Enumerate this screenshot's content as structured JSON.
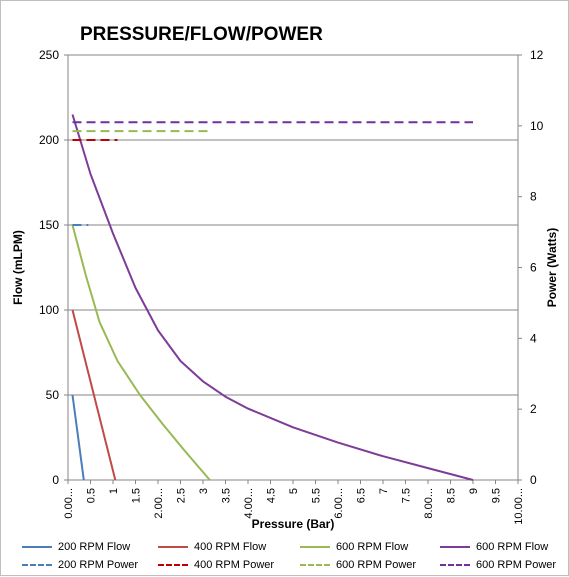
{
  "chart_data": {
    "type": "line",
    "title": "PRESSURE/FLOW/POWER",
    "xlabel": "Pressure (Bar)",
    "ylabel": "Flow (mLPM)",
    "y2label": "Power (Watts)",
    "x_ticks": [
      "0.00...",
      "0.5",
      "1",
      "1.5",
      "2.00...",
      "2.5",
      "3",
      "3.5",
      "4.00...",
      "4.5",
      "5",
      "5.5",
      "6.00...",
      "6.5",
      "7",
      "7.5",
      "8.00...",
      "8.5",
      "9",
      "9.5",
      "10.00..."
    ],
    "xlim": [
      0,
      10
    ],
    "ylim": [
      0,
      250
    ],
    "y_ticks": [
      0,
      50,
      100,
      150,
      200,
      250
    ],
    "y2lim": [
      0,
      12
    ],
    "y2_ticks": [
      0,
      2,
      4,
      6,
      8,
      10,
      12
    ],
    "grid": "horizontal",
    "legend_position": "bottom",
    "series": [
      {
        "name": "200 RPM Flow",
        "axis": "left",
        "style": "solid",
        "color": "#4a7ebb",
        "points": [
          [
            0.1,
            50
          ],
          [
            0.35,
            0
          ]
        ]
      },
      {
        "name": "400 RPM Flow",
        "axis": "left",
        "style": "solid",
        "color": "#be4b48",
        "points": [
          [
            0.1,
            100
          ],
          [
            1.05,
            0
          ]
        ]
      },
      {
        "name": "600 RPM Flow",
        "axis": "left",
        "style": "solid",
        "color": "#98b954",
        "points": [
          [
            0.1,
            150
          ],
          [
            0.4,
            120
          ],
          [
            0.7,
            93
          ],
          [
            1.1,
            70
          ],
          [
            1.6,
            50
          ],
          [
            2.1,
            33
          ],
          [
            2.6,
            17
          ],
          [
            3.15,
            0
          ]
        ]
      },
      {
        "name": "600 RPM Flow",
        "axis": "left",
        "style": "solid",
        "color": "#7d3c98",
        "points": [
          [
            0.1,
            215
          ],
          [
            0.5,
            180
          ],
          [
            1.0,
            145
          ],
          [
            1.5,
            113
          ],
          [
            2.0,
            88
          ],
          [
            2.5,
            70
          ],
          [
            3.0,
            58
          ],
          [
            3.5,
            49
          ],
          [
            4.0,
            42
          ],
          [
            5.0,
            31
          ],
          [
            6.0,
            22
          ],
          [
            7.0,
            14
          ],
          [
            8.0,
            7
          ],
          [
            9.0,
            0
          ]
        ]
      },
      {
        "name": "200 RPM Power",
        "axis": "right",
        "style": "dashed",
        "color": "#4a7ebb",
        "points": [
          [
            0.1,
            7.2
          ],
          [
            0.45,
            7.2
          ]
        ]
      },
      {
        "name": "400 RPM Power",
        "axis": "right",
        "style": "dashed",
        "color": "#c00000",
        "points": [
          [
            0.1,
            9.6
          ],
          [
            1.1,
            9.6
          ]
        ]
      },
      {
        "name": "600 RPM Power",
        "axis": "right",
        "style": "dashed",
        "color": "#98b954",
        "points": [
          [
            0.1,
            9.85
          ],
          [
            3.2,
            9.85
          ]
        ]
      },
      {
        "name": "600 RPM Power",
        "axis": "right",
        "style": "dashed",
        "color": "#7030a0",
        "points": [
          [
            0.1,
            10.1
          ],
          [
            9.0,
            10.1
          ]
        ]
      }
    ]
  }
}
